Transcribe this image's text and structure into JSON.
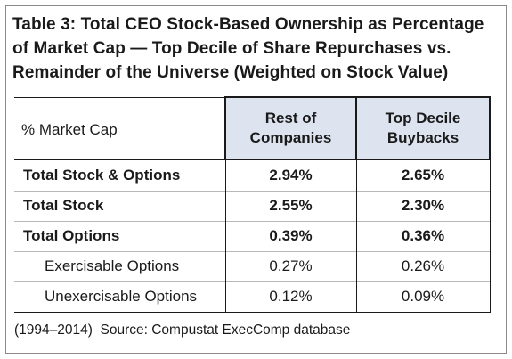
{
  "title": "Table 3: Total CEO Stock-Based Ownership as Percentage of Market Cap — Top Decile of Share Repurchases vs. Remainder of the Universe (Weighted on Stock Value)",
  "table": {
    "corner_label": "% Market Cap",
    "columns": [
      "Rest of Companies",
      "Top Decile Buybacks"
    ],
    "rows": [
      {
        "label": "Total Stock & Options",
        "values": [
          "2.94%",
          "2.65%"
        ]
      },
      {
        "label": "Total Stock",
        "values": [
          "2.55%",
          "2.30%"
        ]
      },
      {
        "label": "Total Options",
        "values": [
          "0.39%",
          "0.36%"
        ]
      },
      {
        "label": "Exercisable Options",
        "values": [
          "0.27%",
          "0.26%"
        ]
      },
      {
        "label": "Unexercisable Options",
        "values": [
          "0.12%",
          "0.09%"
        ]
      }
    ]
  },
  "footnote": "(1994–2014)  Source: Compustat ExecComp database",
  "colors": {
    "header_fill": "#dde4f0",
    "frame_border": "#8a8a8a",
    "text": "#1a1a1a"
  }
}
